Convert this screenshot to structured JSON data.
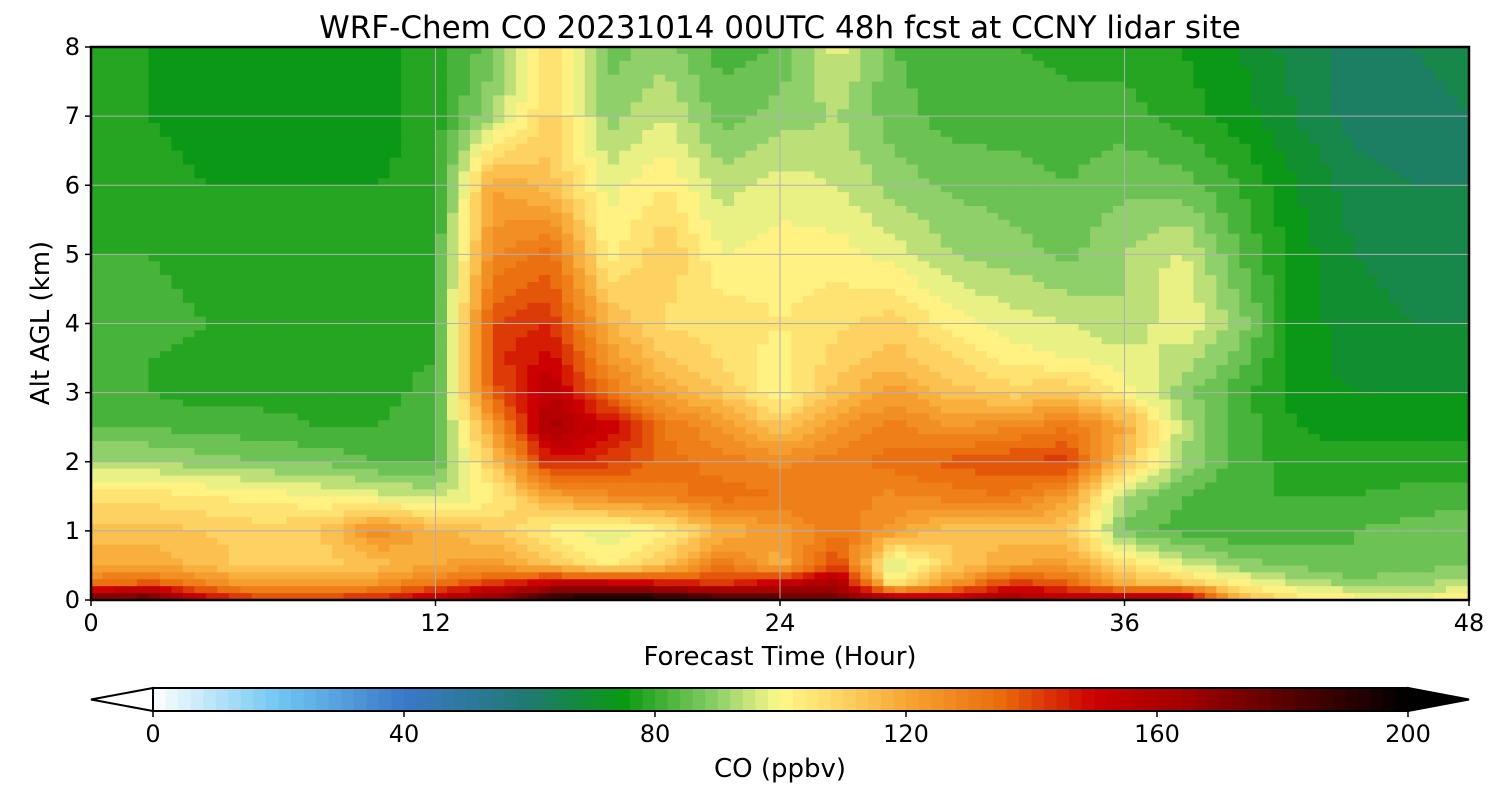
{
  "chart_data": {
    "type": "heatmap",
    "title": "WRF-Chem CO  20231014 00UTC 48h fcst at CCNY lidar site",
    "xlabel": "Forecast Time (Hour)",
    "ylabel": "Alt AGL (km)",
    "xlim": [
      0,
      48
    ],
    "ylim": [
      0,
      8
    ],
    "xticks": [
      "0",
      "12",
      "24",
      "36",
      "48"
    ],
    "yticks": [
      "0",
      "1",
      "2",
      "3",
      "4",
      "5",
      "6",
      "7",
      "8"
    ],
    "grid": true,
    "x_hours": [
      0,
      2,
      4,
      6,
      8,
      10,
      12,
      14,
      16,
      18,
      20,
      22,
      24,
      26,
      28,
      30,
      32,
      34,
      36,
      38,
      40,
      42,
      44,
      46,
      48
    ],
    "y_km": [
      0,
      0.25,
      0.5,
      1,
      1.5,
      2,
      2.5,
      3,
      3.5,
      4,
      5,
      6,
      7,
      8
    ],
    "values": [
      [
        175,
        180,
        150,
        140,
        140,
        145,
        155,
        170,
        190,
        200,
        195,
        185,
        180,
        175,
        160,
        155,
        165,
        155,
        160,
        165,
        115,
        105,
        100,
        100,
        100
      ],
      [
        130,
        135,
        125,
        118,
        118,
        122,
        130,
        140,
        150,
        150,
        145,
        140,
        150,
        160,
        100,
        120,
        140,
        135,
        115,
        110,
        100,
        92,
        88,
        88,
        92
      ],
      [
        118,
        118,
        112,
        108,
        108,
        112,
        118,
        120,
        112,
        100,
        110,
        130,
        115,
        140,
        90,
        110,
        118,
        120,
        105,
        95,
        88,
        85,
        82,
        84,
        86
      ],
      [
        112,
        112,
        110,
        108,
        110,
        125,
        115,
        110,
        100,
        95,
        100,
        115,
        120,
        130,
        120,
        110,
        112,
        110,
        85,
        80,
        78,
        80,
        82,
        84,
        86
      ],
      [
        104,
        104,
        102,
        100,
        98,
        95,
        92,
        100,
        118,
        125,
        128,
        132,
        130,
        128,
        125,
        128,
        130,
        120,
        90,
        82,
        78,
        78,
        78,
        79,
        80
      ],
      [
        90,
        90,
        88,
        86,
        85,
        82,
        82,
        110,
        145,
        140,
        132,
        128,
        125,
        128,
        132,
        135,
        138,
        140,
        110,
        90,
        80,
        76,
        76,
        76,
        76
      ],
      [
        82,
        82,
        80,
        80,
        78,
        78,
        82,
        120,
        160,
        150,
        130,
        122,
        110,
        122,
        128,
        122,
        125,
        130,
        118,
        92,
        80,
        74,
        72,
        72,
        72
      ],
      [
        78,
        78,
        76,
        76,
        76,
        76,
        80,
        135,
        155,
        130,
        118,
        110,
        98,
        112,
        120,
        112,
        108,
        110,
        100,
        88,
        80,
        72,
        70,
        70,
        70
      ],
      [
        78,
        78,
        76,
        76,
        76,
        76,
        78,
        140,
        148,
        122,
        110,
        105,
        100,
        108,
        112,
        106,
        100,
        98,
        96,
        92,
        84,
        72,
        68,
        68,
        68
      ],
      [
        80,
        80,
        78,
        76,
        76,
        76,
        78,
        138,
        142,
        115,
        105,
        105,
        102,
        105,
        108,
        100,
        96,
        94,
        90,
        98,
        88,
        72,
        68,
        66,
        66
      ],
      [
        78,
        78,
        76,
        76,
        76,
        76,
        78,
        125,
        132,
        100,
        110,
        98,
        100,
        100,
        96,
        90,
        88,
        85,
        90,
        95,
        82,
        72,
        66,
        64,
        64
      ],
      [
        76,
        76,
        74,
        74,
        74,
        74,
        76,
        118,
        112,
        96,
        102,
        92,
        96,
        94,
        88,
        85,
        84,
        82,
        85,
        84,
        78,
        70,
        64,
        62,
        62
      ],
      [
        74,
        74,
        72,
        72,
        72,
        72,
        76,
        90,
        108,
        88,
        94,
        84,
        88,
        90,
        84,
        80,
        80,
        79,
        80,
        76,
        72,
        66,
        60,
        60,
        62
      ],
      [
        74,
        74,
        72,
        72,
        72,
        72,
        76,
        84,
        104,
        84,
        88,
        80,
        82,
        96,
        82,
        78,
        78,
        77,
        76,
        74,
        70,
        64,
        60,
        62,
        64
      ]
    ],
    "colorbar": {
      "label": "CO  (ppbv)",
      "min": 0,
      "max": 200,
      "ticks": [
        "0",
        "40",
        "80",
        "120",
        "160",
        "200"
      ],
      "extend": "both",
      "color_stops": [
        [
          0,
          "#ffffff"
        ],
        [
          20,
          "#6fc7f2"
        ],
        [
          40,
          "#3a78c8"
        ],
        [
          60,
          "#1f7a70"
        ],
        [
          75,
          "#0a9a10"
        ],
        [
          90,
          "#8fd06a"
        ],
        [
          100,
          "#fff98a"
        ],
        [
          110,
          "#fdd262"
        ],
        [
          120,
          "#f7a634"
        ],
        [
          135,
          "#ea6c0c"
        ],
        [
          150,
          "#cc0000"
        ],
        [
          165,
          "#a00000"
        ],
        [
          180,
          "#5a0000"
        ],
        [
          200,
          "#000000"
        ]
      ]
    }
  }
}
